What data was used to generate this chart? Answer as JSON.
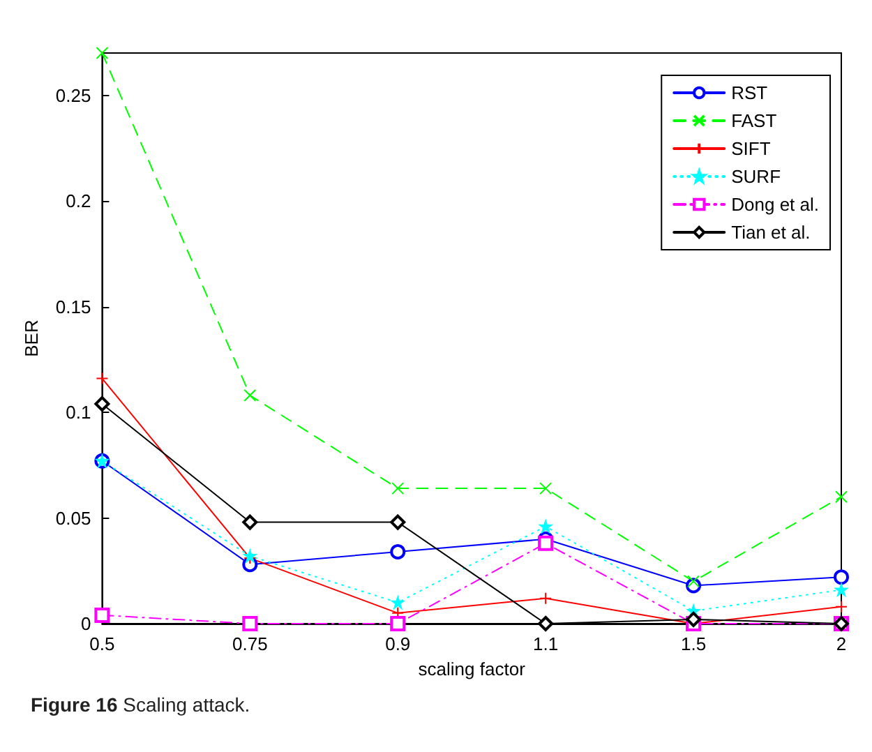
{
  "chart_data": {
    "type": "line",
    "xlabel": "scaling factor",
    "ylabel": "BER",
    "annotations": [
      "Figure 16 Scaling attack."
    ],
    "categories": [
      "0.5",
      "0.75",
      "0.9",
      "1.1",
      "1.5",
      "2"
    ],
    "ylim": [
      0,
      0.27
    ],
    "yticks": [
      0,
      0.05,
      0.1,
      0.15,
      0.2,
      0.25
    ],
    "grid": false,
    "legend": "top right",
    "series": [
      {
        "name": "RST",
        "color": "#0000ff",
        "marker": "circle",
        "line_style": "solid",
        "values": [
          0.077,
          0.028,
          0.034,
          0.04,
          0.018,
          0.022
        ]
      },
      {
        "name": "FAST",
        "color": "#00ff00",
        "marker": "x",
        "line_style": "dashed",
        "values": [
          0.27,
          0.108,
          0.064,
          0.064,
          0.02,
          0.06
        ]
      },
      {
        "name": "SIFT",
        "color": "#ff0000",
        "marker": "cross",
        "line_style": "solid",
        "values": [
          0.116,
          0.031,
          0.005,
          0.012,
          0.0,
          0.008
        ]
      },
      {
        "name": "SURF",
        "color": "#00ffff",
        "marker": "star",
        "line_style": "dotted",
        "values": [
          0.077,
          0.032,
          0.01,
          0.046,
          0.006,
          0.016
        ]
      },
      {
        "name": "Dong et al.",
        "color": "#ff00ff",
        "marker": "square",
        "line_style": "dashdot",
        "values": [
          0.004,
          0.0,
          0.0,
          0.038,
          0.0,
          0.0
        ]
      },
      {
        "name": "Tian et al.",
        "color": "#000000",
        "marker": "diamond",
        "line_style": "solid",
        "values": [
          0.104,
          0.048,
          0.048,
          0.0,
          0.002,
          0.0
        ]
      }
    ]
  }
}
